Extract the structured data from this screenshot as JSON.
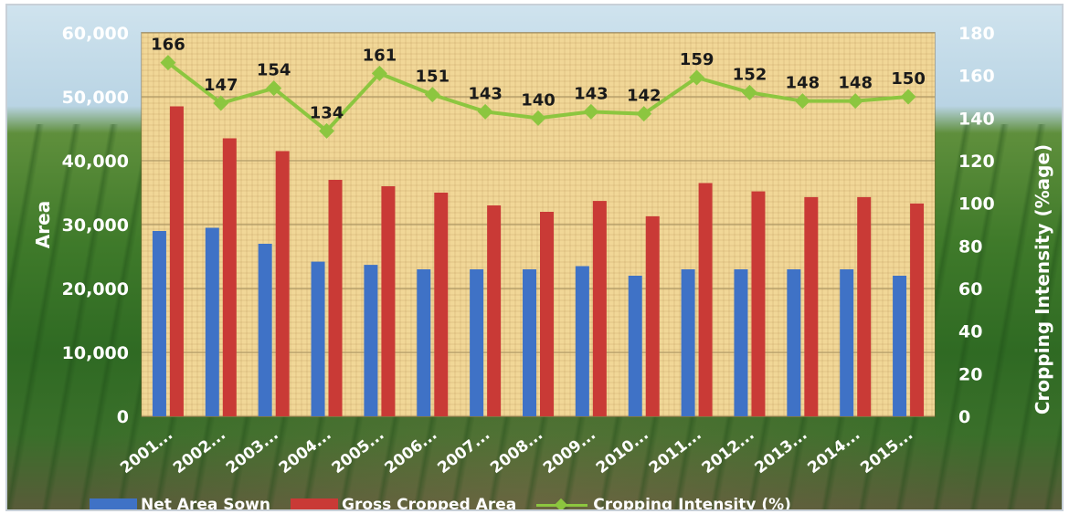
{
  "chart_data": {
    "type": "bar",
    "categories": [
      "2001...",
      "2002...",
      "2003...",
      "2004...",
      "2005...",
      "2006...",
      "2007...",
      "2008...",
      "2009...",
      "2010...",
      "2011...",
      "2012...",
      "2013...",
      "2014...",
      "2015..."
    ],
    "series": [
      {
        "name": "Net Area Sown",
        "type": "bar",
        "axis": "left",
        "color": "#3f72c6",
        "values": [
          29000,
          29500,
          27000,
          24200,
          23700,
          23000,
          23000,
          23000,
          23500,
          22000,
          23000,
          23000,
          23000,
          23000,
          22000
        ]
      },
      {
        "name": "Gross Cropped Area",
        "type": "bar",
        "axis": "left",
        "color": "#c93a36",
        "values": [
          48500,
          43500,
          41500,
          37000,
          36000,
          35000,
          33000,
          32000,
          33700,
          31300,
          36500,
          35200,
          34300,
          34300,
          33300
        ]
      },
      {
        "name": "Cropping Intensity (%)",
        "type": "line",
        "axis": "right",
        "color": "#8cc63f",
        "values": [
          166,
          147,
          154,
          134,
          161,
          151,
          143,
          140,
          143,
          142,
          159,
          152,
          148,
          148,
          150
        ],
        "labels": [
          "166",
          "147",
          "154",
          "134",
          "161",
          "151",
          "143",
          "140",
          "143",
          "142",
          "159",
          "152",
          "148",
          "148",
          "150"
        ]
      }
    ],
    "ylabel": "Area",
    "y2label": "Cropping Intensity (%age)",
    "ylim": [
      0,
      60000
    ],
    "y2lim": [
      0,
      180
    ],
    "yticks": [
      "0",
      "10,000",
      "20,000",
      "30,000",
      "40,000",
      "50,000",
      "60,000"
    ],
    "y2ticks": [
      "0",
      "20",
      "40",
      "60",
      "80",
      "100",
      "120",
      "140",
      "160",
      "180"
    ],
    "grid": true,
    "legend_position": "bottom"
  }
}
